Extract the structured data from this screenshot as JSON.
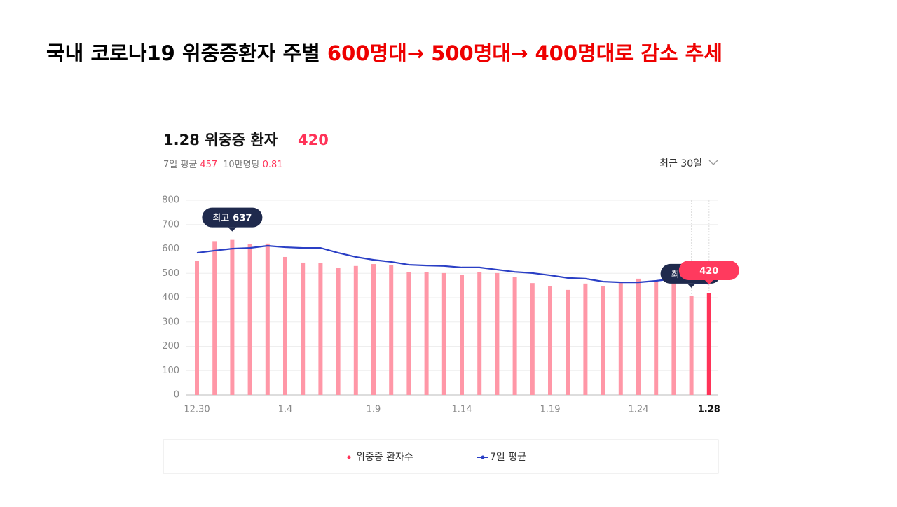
{
  "slide_title": {
    "black": "국내 코로나19 위중증환자 주별 ",
    "red": "600명대→ 500명대→ 400명대로 감소 추세"
  },
  "chart_data": {
    "type": "bar",
    "title": "1.28 위중증 환자",
    "stats": [
      {
        "label": "7일 평균",
        "value": 457
      },
      {
        "label": "10만명당",
        "value": 0.81
      }
    ],
    "period": "최근 30일",
    "max_label": "최고",
    "min_label": "최저",
    "categories": [
      "12.30",
      null,
      null,
      null,
      null,
      "1.4",
      null,
      null,
      null,
      null,
      "1.9",
      null,
      null,
      null,
      null,
      "1.14",
      null,
      null,
      null,
      null,
      "1.19",
      null,
      null,
      null,
      null,
      "1.24",
      null,
      null,
      null,
      "1.28"
    ],
    "series": [
      {
        "name": "위중증 환자수",
        "color": "#ff97a7",
        "highlight_color": "#ff3358",
        "values": [
          552,
          632,
          637,
          619,
          622,
          567,
          544,
          541,
          521,
          530,
          538,
          535,
          506,
          506,
          501,
          495,
          506,
          501,
          486,
          460,
          446,
          432,
          458,
          446,
          460,
          478,
          472,
          466,
          406,
          420
        ]
      },
      {
        "name": "7일 평균",
        "type": "line",
        "color": "#2a3fc5",
        "values": [
          584,
          593,
          601,
          604,
          613,
          607,
          604,
          604,
          584,
          567,
          555,
          547,
          535,
          532,
          530,
          524,
          524,
          515,
          506,
          501,
          492,
          481,
          478,
          466,
          463,
          463,
          469,
          478,
          462,
          457
        ]
      }
    ],
    "ylim": [
      0,
      800
    ],
    "yticks": [
      0,
      100,
      200,
      300,
      400,
      500,
      600,
      700,
      800
    ],
    "grid": true
  }
}
